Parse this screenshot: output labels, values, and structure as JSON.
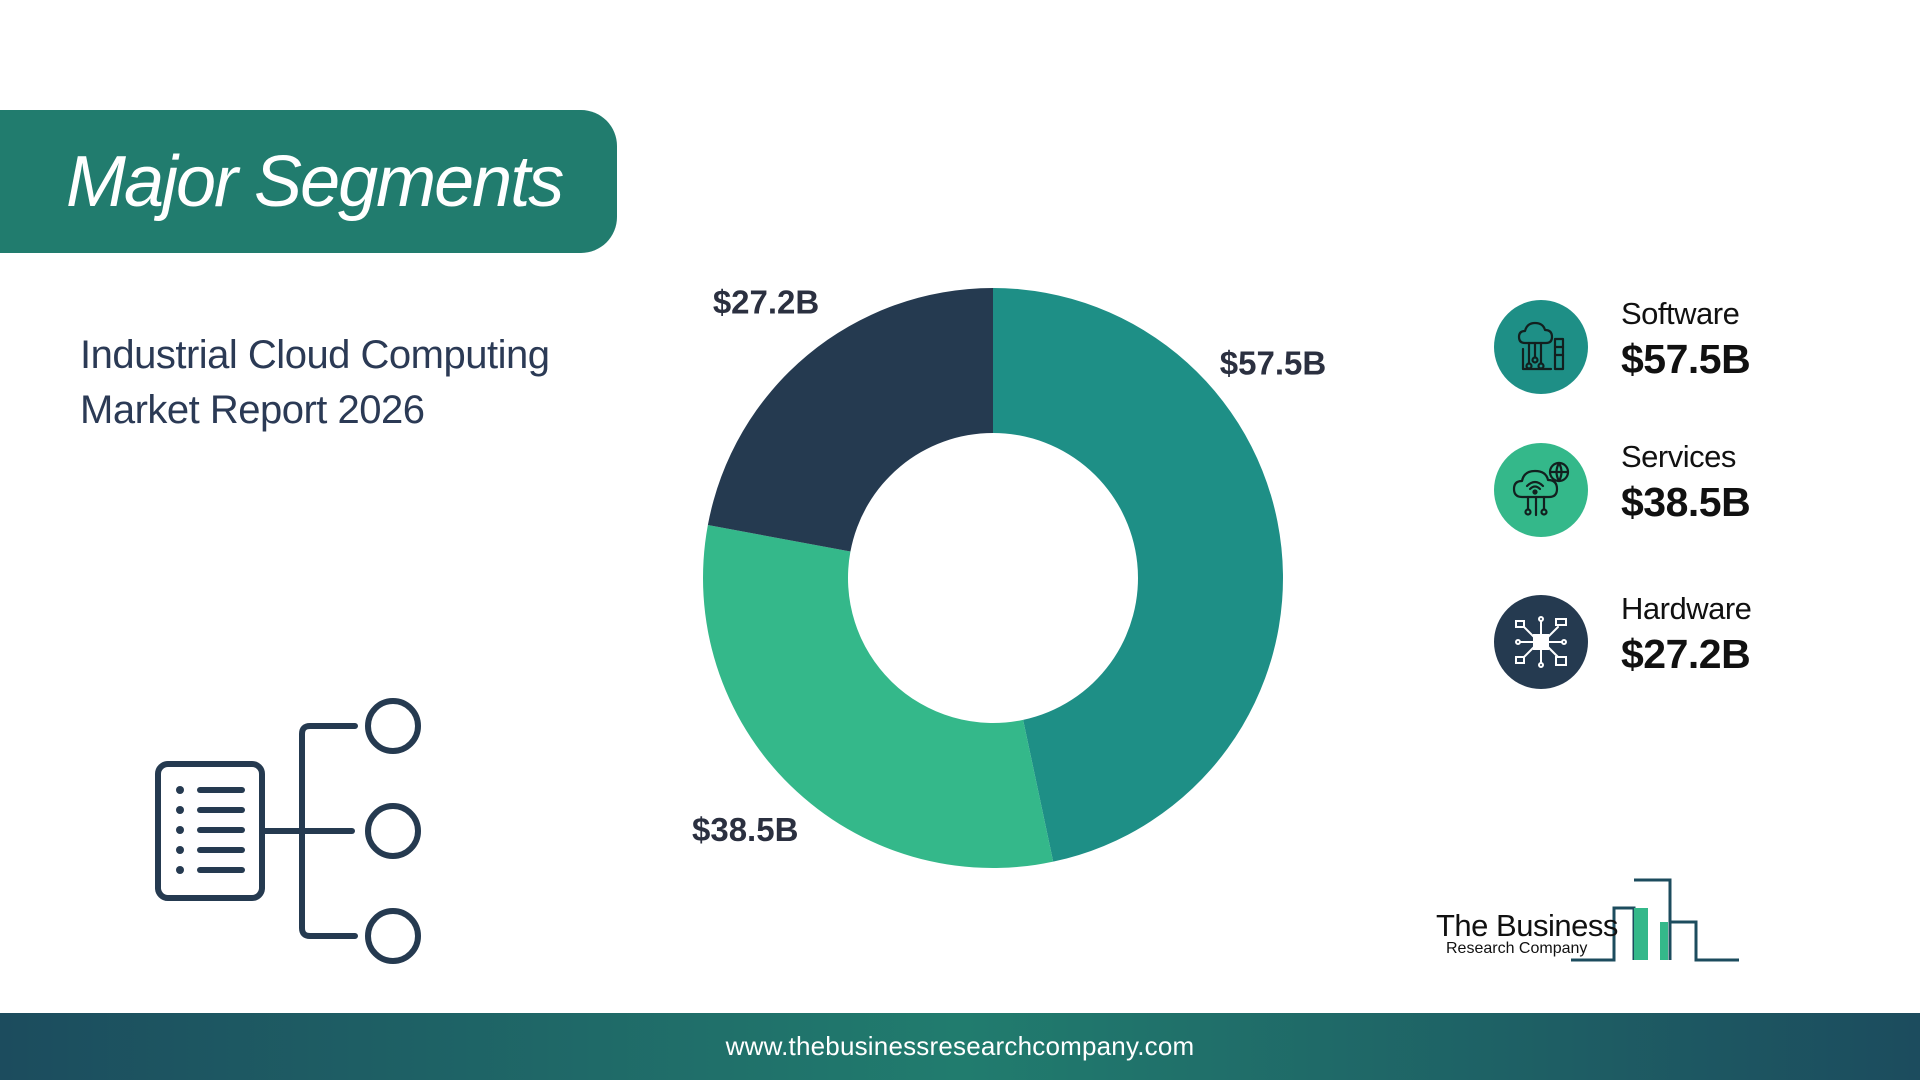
{
  "header": {
    "title": "Major Segments",
    "subtitle_line1": "Industrial Cloud Computing",
    "subtitle_line2": "Market Report 2026"
  },
  "colors": {
    "primary_teal": "#217c6e",
    "slice_software": "#1e8f86",
    "slice_services": "#34b88a",
    "slice_hardware": "#253a50",
    "text_dark": "#2b3a55"
  },
  "chart_data": {
    "type": "pie",
    "style": "donut",
    "unit": "$B",
    "categories": [
      "Software",
      "Services",
      "Hardware"
    ],
    "values": [
      57.5,
      38.5,
      27.2
    ],
    "data_labels": [
      "$57.5B",
      "$38.5B",
      "$27.2B"
    ],
    "colors": [
      "#1e8f86",
      "#34b88a",
      "#253a50"
    ]
  },
  "legend": [
    {
      "label": "Software",
      "value": "$57.5B",
      "icon": "cloud-circuit-icon",
      "color": "#1e8f86"
    },
    {
      "label": "Services",
      "value": "$38.5B",
      "icon": "cloud-network-globe-icon",
      "color": "#34b88a"
    },
    {
      "label": "Hardware",
      "value": "$27.2B",
      "icon": "chip-circuit-icon",
      "color": "#253a50"
    }
  ],
  "logo": {
    "line1": "The Business",
    "line2": "Research Company"
  },
  "footer": {
    "url": "www.thebusinessresearchcompany.com"
  }
}
